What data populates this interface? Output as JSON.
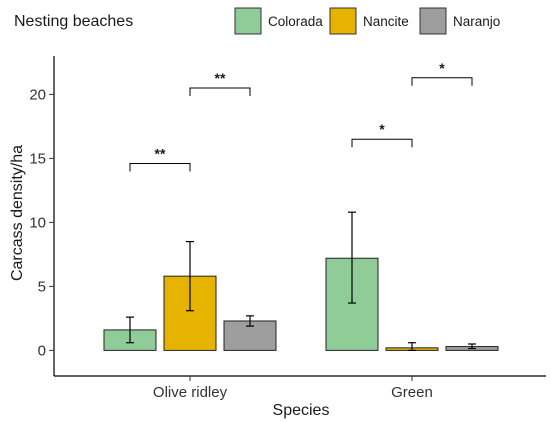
{
  "chart_data": {
    "type": "bar",
    "xlabel": "Species",
    "ylabel": "Carcass density/ha",
    "ylim": [
      -2,
      23
    ],
    "yticks": [
      0,
      5,
      10,
      15,
      20
    ],
    "categories": [
      "Olive ridley",
      "Green"
    ],
    "legend": {
      "title": "Nesting beaches",
      "position": "top"
    },
    "series": [
      {
        "name": "Colorada",
        "color": "#8fcc98",
        "values": [
          1.6,
          7.2
        ],
        "err_low": [
          0.6,
          3.7
        ],
        "err_high": [
          2.6,
          10.8
        ]
      },
      {
        "name": "Nancite",
        "color": "#e6b400",
        "values": [
          5.8,
          0.2
        ],
        "err_low": [
          3.1,
          0.0
        ],
        "err_high": [
          8.5,
          0.6
        ]
      },
      {
        "name": "Naranjo",
        "color": "#9e9e9e",
        "values": [
          2.3,
          0.3
        ],
        "err_low": [
          1.9,
          0.15
        ],
        "err_high": [
          2.7,
          0.5
        ]
      }
    ],
    "significance": [
      {
        "label": "**",
        "category": 0,
        "from_series": 0,
        "to_series": 1,
        "y": 14.6
      },
      {
        "label": "**",
        "category": 0,
        "from_series": 1,
        "to_series": 2,
        "y": 20.5
      },
      {
        "label": "*",
        "category": 1,
        "from_series": 0,
        "to_series": 1,
        "y": 16.5
      },
      {
        "label": "*",
        "category": 1,
        "from_series": 1,
        "to_series": 2,
        "y": 21.3
      }
    ]
  }
}
